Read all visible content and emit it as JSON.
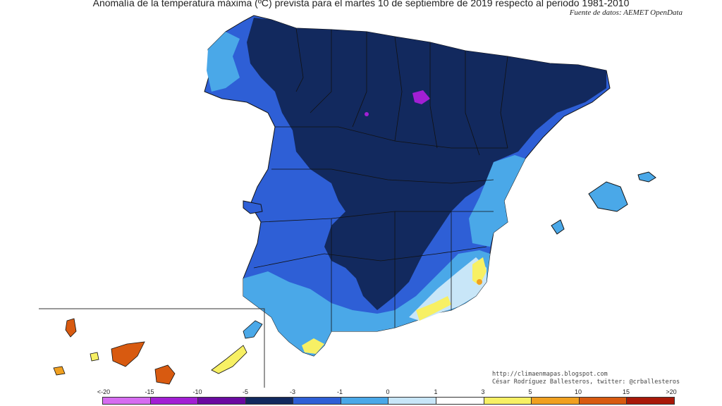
{
  "title": "Anomalía de la temperatura máxima (ºC) prevista para el martes 10 de septiembre de 2019 respecto al periodo 1981-2010",
  "source": "Fuente de datos: AEMET OpenData",
  "credits": {
    "line1": "http://climaenmapas.blogspot.com",
    "line2": "César Rodríguez Ballesteros, twitter: @crballesteros"
  },
  "legend": {
    "labels": [
      "<-20",
      "-15",
      "-10",
      "-5",
      "-3",
      "-1",
      "0",
      "1",
      "3",
      "5",
      "10",
      "15",
      ">20"
    ],
    "colors": [
      "#d66cf0",
      "#a21fd4",
      "#6a0aa0",
      "#12295e",
      "#2e5fd6",
      "#4aa8e8",
      "#c8e6f8",
      "#ffffff",
      "#f7f064",
      "#f0a020",
      "#d85a10",
      "#a81808",
      "#6a3a10"
    ]
  },
  "colors": {
    "strong_cold": "#12295e",
    "cold": "#2e5fd6",
    "mild_cold": "#4aa8e8",
    "slight_cold": "#c8e6f8",
    "warm": "#f7f064",
    "hot": "#f0a020",
    "very_hot": "#d85a10",
    "extreme_cold": "#a21fd4"
  }
}
